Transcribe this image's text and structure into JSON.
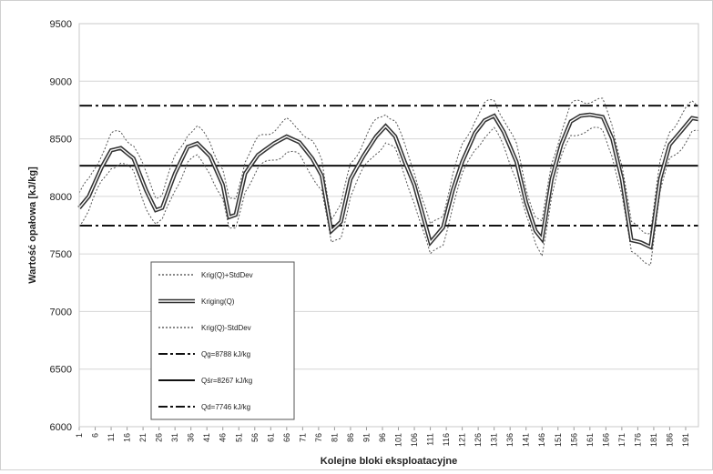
{
  "chart_data": {
    "type": "line",
    "xlabel": "Kolejne bloki eksploatacyjne",
    "ylabel": "Wartość opałowa [kJ/kg]",
    "ylim": [
      6000,
      9500
    ],
    "yticks": [
      6000,
      6500,
      7000,
      7500,
      8000,
      8500,
      9000,
      9500
    ],
    "xrange": [
      1,
      195
    ],
    "xticks": [
      1,
      6,
      11,
      16,
      21,
      26,
      31,
      36,
      41,
      46,
      51,
      56,
      61,
      66,
      71,
      76,
      81,
      86,
      91,
      96,
      101,
      106,
      111,
      116,
      121,
      126,
      131,
      136,
      141,
      146,
      151,
      156,
      161,
      166,
      171,
      176,
      181,
      186,
      191
    ],
    "grid": "horizontal",
    "legend_position": "lower-left",
    "kriging_points": [
      [
        1,
        7900
      ],
      [
        4,
        8000
      ],
      [
        8,
        8250
      ],
      [
        11,
        8400
      ],
      [
        14,
        8420
      ],
      [
        18,
        8330
      ],
      [
        22,
        8050
      ],
      [
        25,
        7880
      ],
      [
        27,
        7900
      ],
      [
        31,
        8200
      ],
      [
        35,
        8430
      ],
      [
        38,
        8460
      ],
      [
        42,
        8350
      ],
      [
        46,
        8100
      ],
      [
        48,
        7820
      ],
      [
        50,
        7840
      ],
      [
        53,
        8200
      ],
      [
        57,
        8360
      ],
      [
        62,
        8460
      ],
      [
        66,
        8520
      ],
      [
        70,
        8470
      ],
      [
        74,
        8330
      ],
      [
        77,
        8180
      ],
      [
        80,
        7700
      ],
      [
        83,
        7780
      ],
      [
        86,
        8150
      ],
      [
        90,
        8350
      ],
      [
        94,
        8520
      ],
      [
        97,
        8610
      ],
      [
        100,
        8520
      ],
      [
        103,
        8300
      ],
      [
        106,
        8100
      ],
      [
        108,
        7900
      ],
      [
        111,
        7600
      ],
      [
        115,
        7730
      ],
      [
        118,
        8050
      ],
      [
        121,
        8300
      ],
      [
        125,
        8550
      ],
      [
        128,
        8660
      ],
      [
        131,
        8700
      ],
      [
        134,
        8560
      ],
      [
        138,
        8300
      ],
      [
        141,
        7950
      ],
      [
        144,
        7700
      ],
      [
        146,
        7630
      ],
      [
        149,
        8150
      ],
      [
        152,
        8450
      ],
      [
        155,
        8650
      ],
      [
        158,
        8700
      ],
      [
        161,
        8710
      ],
      [
        165,
        8690
      ],
      [
        168,
        8500
      ],
      [
        171,
        8150
      ],
      [
        174,
        7620
      ],
      [
        177,
        7600
      ],
      [
        180,
        7560
      ],
      [
        183,
        8150
      ],
      [
        186,
        8450
      ],
      [
        190,
        8580
      ],
      [
        193,
        8680
      ],
      [
        195,
        8670
      ]
    ],
    "std_dev": 130,
    "series": [
      {
        "name": "Krig(Q)+StdDev",
        "style": "dotted"
      },
      {
        "name": "Kriging(Q)",
        "style": "double"
      },
      {
        "name": "Krig(Q)-StdDev",
        "style": "dotted"
      },
      {
        "name": "Qg=8788 kJ/kg",
        "style": "dash-dot",
        "value": 8788
      },
      {
        "name": "Qśr=8267 kJ/kg",
        "style": "solid",
        "value": 8267
      },
      {
        "name": "Qd=7746 kJ/kg",
        "style": "dash-dot",
        "value": 7746
      }
    ]
  }
}
